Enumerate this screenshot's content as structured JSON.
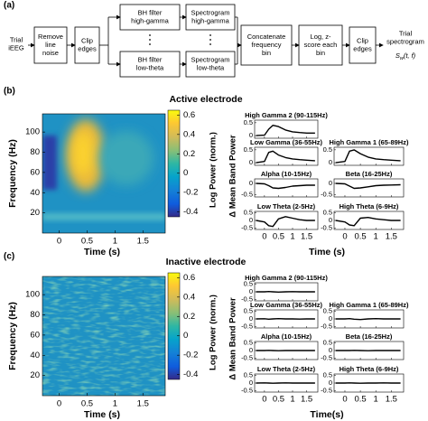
{
  "panel_labels": {
    "a": "(a)",
    "b": "(b)",
    "c": "(c)"
  },
  "flowchart": {
    "input": [
      "Trial",
      "iEEG"
    ],
    "nodes": [
      [
        "Remove",
        "line",
        "noise"
      ],
      [
        "Clip",
        "edges"
      ],
      [
        "BH filter",
        "high-gamma"
      ],
      [
        "BH filter",
        "low-theta"
      ],
      [
        "Spectrogram",
        "high-gamma"
      ],
      [
        "Spectrogram",
        "low-theta"
      ],
      [
        "Concatenate",
        "frequency",
        "bin"
      ],
      [
        "Log, z-",
        "score each",
        "bin"
      ],
      [
        "Clip",
        "edges"
      ]
    ],
    "output": {
      "lines": [
        "Trial",
        "spectrogram"
      ],
      "symbol": "S",
      "subscript": "w",
      "args": "(t, f)"
    }
  },
  "panels": [
    {
      "title": "Active  electrode",
      "heatmap": {
        "xlabel": "Time (s)",
        "ylabel": "Frequency (Hz)",
        "xlim": [
          -0.3,
          1.9
        ],
        "xticks": [
          0,
          0.5,
          1,
          1.5
        ],
        "ylim": [
          0,
          118
        ],
        "yticks": [
          20,
          40,
          60,
          80,
          100
        ],
        "colorbar": {
          "label": "Log Power (norm.)",
          "clim": [
            -0.45,
            0.65
          ],
          "ticks": [
            -0.4,
            -0.2,
            0,
            0.2,
            0.4,
            0.6
          ]
        }
      },
      "bands": {
        "xlabel": "Time (s)",
        "ylabel": "Δ Mean Band Power",
        "xlim": [
          -0.35,
          1.9
        ],
        "xticks": [
          0,
          0.5,
          1,
          1.5
        ],
        "x": [
          -0.3,
          0,
          0.15,
          0.3,
          0.5,
          0.75,
          1,
          1.25,
          1.5,
          1.8
        ],
        "subplots": [
          {
            "title": "High Gamma 2 (90-115Hz)",
            "ylim": [
              -0.1,
              0.6
            ],
            "yticks": [
              0,
              0.5
            ],
            "values": [
              0,
              0.02,
              0.25,
              0.4,
              0.35,
              0.22,
              0.15,
              0.12,
              0.1,
              0.1
            ]
          },
          {
            "title": "Low Gamma (36-55Hz)",
            "ylim": [
              -0.1,
              0.6
            ],
            "yticks": [
              0,
              0.5
            ],
            "values": [
              0,
              0.05,
              0.4,
              0.45,
              0.3,
              0.2,
              0.15,
              0.12,
              0.1,
              0.08
            ]
          },
          {
            "title": "High Gamma 1 (65-89Hz)",
            "ylim": [
              -0.1,
              0.6
            ],
            "yticks": [
              0,
              0.5
            ],
            "values": [
              0,
              0.05,
              0.45,
              0.5,
              0.35,
              0.22,
              0.15,
              0.12,
              0.1,
              0.08
            ]
          },
          {
            "title": "Alpha (10-15Hz)",
            "ylim": [
              -0.6,
              0.2
            ],
            "yticks": [
              -0.5,
              0
            ],
            "values": [
              0,
              -0.02,
              -0.1,
              -0.2,
              -0.22,
              -0.18,
              -0.12,
              -0.1,
              -0.08,
              -0.08
            ]
          },
          {
            "title": "Beta (16-25Hz)",
            "ylim": [
              -0.6,
              0.2
            ],
            "yticks": [
              -0.5,
              0
            ],
            "values": [
              0,
              -0.02,
              -0.12,
              -0.22,
              -0.2,
              -0.15,
              -0.1,
              -0.08,
              -0.07,
              -0.06
            ]
          },
          {
            "title": "Low Theta (2-5Hz)",
            "ylim": [
              -0.6,
              0.6
            ],
            "yticks": [
              -0.5,
              0,
              0.5
            ],
            "values": [
              0,
              -0.1,
              -0.35,
              -0.4,
              0.1,
              0.25,
              0.15,
              0.05,
              0,
              0
            ]
          },
          {
            "title": "High Theta (6-9Hz)",
            "ylim": [
              -0.6,
              0.6
            ],
            "yticks": [
              -0.5,
              0,
              0.5
            ],
            "values": [
              0,
              -0.1,
              -0.3,
              -0.35,
              0.15,
              0.2,
              0.1,
              0.05,
              0,
              0
            ]
          }
        ]
      }
    },
    {
      "title": "Inactive  electrode",
      "heatmap": {
        "xlabel": "Time (s)",
        "ylabel": "Frequency (Hz)",
        "xlim": [
          -0.3,
          1.9
        ],
        "xticks": [
          0,
          0.5,
          1,
          1.5
        ],
        "ylim": [
          0,
          118
        ],
        "yticks": [
          20,
          40,
          60,
          80,
          100
        ],
        "colorbar": {
          "label": "Log Power (norm.)",
          "clim": [
            -0.45,
            0.65
          ],
          "ticks": [
            -0.4,
            -0.2,
            0,
            0.2,
            0.4,
            0.6
          ]
        }
      },
      "bands": {
        "xlabel": "Time(s)",
        "ylabel": "Δ Mean Band Power",
        "xlim": [
          -0.35,
          1.9
        ],
        "xticks": [
          0,
          0.5,
          1,
          1.5
        ],
        "x": [
          -0.3,
          0,
          0.15,
          0.3,
          0.5,
          0.75,
          1,
          1.25,
          1.5,
          1.8
        ],
        "subplots": [
          {
            "title": "High Gamma 2 (90-115Hz)",
            "ylim": [
              -0.6,
              0.6
            ],
            "yticks": [
              -0.5,
              0,
              0.5
            ],
            "values": [
              0,
              0,
              0.02,
              0,
              -0.02,
              0,
              0.01,
              0,
              0,
              0
            ]
          },
          {
            "title": "Low Gamma (36-55Hz)",
            "ylim": [
              -0.6,
              0.6
            ],
            "yticks": [
              -0.5,
              0,
              0.5
            ],
            "values": [
              0,
              0.01,
              -0.02,
              0,
              0.02,
              0,
              0,
              -0.01,
              0,
              0
            ]
          },
          {
            "title": "High Gamma 1 (65-89Hz)",
            "ylim": [
              -0.6,
              0.6
            ],
            "yticks": [
              -0.5,
              0,
              0.5
            ],
            "values": [
              0,
              0,
              0.02,
              -0.02,
              -0.04,
              0,
              0.02,
              0,
              0,
              0
            ]
          },
          {
            "title": "Alpha (10-15Hz)",
            "ylim": [
              -0.6,
              0.6
            ],
            "yticks": [
              -0.5,
              0,
              0.5
            ],
            "values": [
              0,
              0,
              0.01,
              0,
              -0.01,
              0,
              0,
              0,
              0,
              0
            ]
          },
          {
            "title": "Beta (16-25Hz)",
            "ylim": [
              -0.6,
              0.6
            ],
            "yticks": [
              -0.5,
              0,
              0.5
            ],
            "values": [
              0,
              0,
              0,
              0.01,
              0,
              -0.01,
              0,
              0,
              0,
              0
            ]
          },
          {
            "title": "Low Theta (2-5Hz)",
            "ylim": [
              -0.6,
              0.6
            ],
            "yticks": [
              -0.5,
              0,
              0.5
            ],
            "values": [
              0,
              0.01,
              0,
              -0.01,
              0,
              0.01,
              0,
              0,
              0,
              0
            ]
          },
          {
            "title": "High Theta (6-9Hz)",
            "ylim": [
              -0.6,
              0.6
            ],
            "yticks": [
              -0.5,
              0,
              0.5
            ],
            "values": [
              0,
              0,
              0.01,
              0,
              -0.01,
              0,
              0,
              0.01,
              0,
              0
            ]
          }
        ]
      }
    }
  ]
}
